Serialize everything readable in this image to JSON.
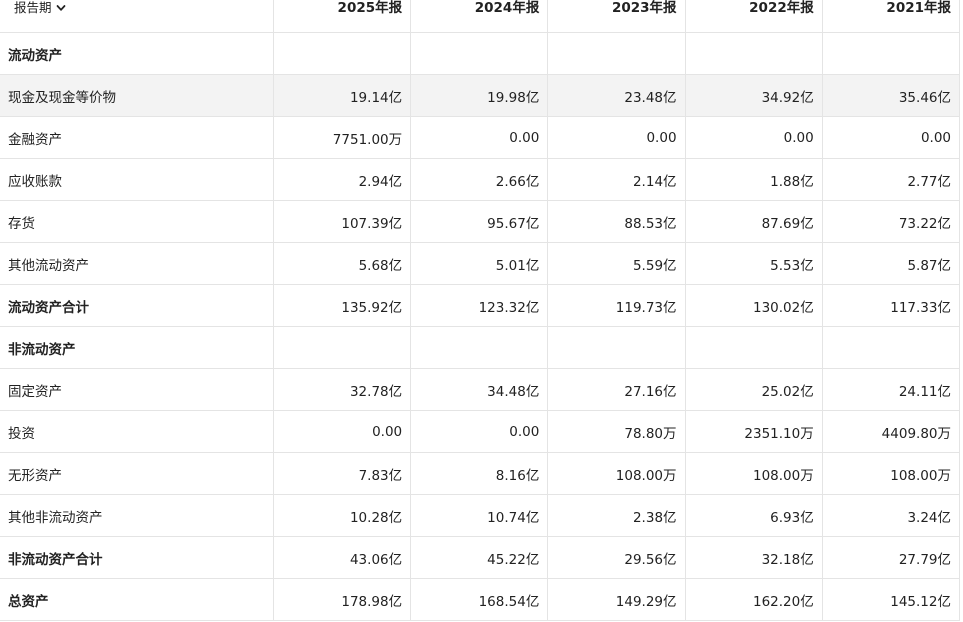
{
  "header": {
    "period_label": "报告期",
    "chevron_icon": "chevron-down-icon",
    "years": [
      "2025年报",
      "2024年报",
      "2023年报",
      "2022年报",
      "2021年报"
    ]
  },
  "rows": [
    {
      "label": "流动资产",
      "values": [
        "",
        "",
        "",
        "",
        ""
      ]
    },
    {
      "label": "现金及现金等价物",
      "values": [
        "19.14亿",
        "19.98亿",
        "23.48亿",
        "34.92亿",
        "35.46亿"
      ]
    },
    {
      "label": "金融资产",
      "values": [
        "7751.00万",
        "0.00",
        "0.00",
        "0.00",
        "0.00"
      ]
    },
    {
      "label": "应收账款",
      "values": [
        "2.94亿",
        "2.66亿",
        "2.14亿",
        "1.88亿",
        "2.77亿"
      ]
    },
    {
      "label": "存货",
      "values": [
        "107.39亿",
        "95.67亿",
        "88.53亿",
        "87.69亿",
        "73.22亿"
      ]
    },
    {
      "label": "其他流动资产",
      "values": [
        "5.68亿",
        "5.01亿",
        "5.59亿",
        "5.53亿",
        "5.87亿"
      ]
    },
    {
      "label": "流动资产合计",
      "values": [
        "135.92亿",
        "123.32亿",
        "119.73亿",
        "130.02亿",
        "117.33亿"
      ]
    },
    {
      "label": "非流动资产",
      "values": [
        "",
        "",
        "",
        "",
        ""
      ]
    },
    {
      "label": "固定资产",
      "values": [
        "32.78亿",
        "34.48亿",
        "27.16亿",
        "25.02亿",
        "24.11亿"
      ]
    },
    {
      "label": "投资",
      "values": [
        "0.00",
        "0.00",
        "78.80万",
        "2351.10万",
        "4409.80万"
      ]
    },
    {
      "label": "无形资产",
      "values": [
        "7.83亿",
        "8.16亿",
        "108.00万",
        "108.00万",
        "108.00万"
      ]
    },
    {
      "label": "其他非流动资产",
      "values": [
        "10.28亿",
        "10.74亿",
        "2.38亿",
        "6.93亿",
        "3.24亿"
      ]
    },
    {
      "label": "非流动资产合计",
      "values": [
        "43.06亿",
        "45.22亿",
        "29.56亿",
        "32.18亿",
        "27.79亿"
      ]
    },
    {
      "label": "总资产",
      "values": [
        "178.98亿",
        "168.54亿",
        "149.29亿",
        "162.20亿",
        "145.12亿"
      ]
    }
  ]
}
